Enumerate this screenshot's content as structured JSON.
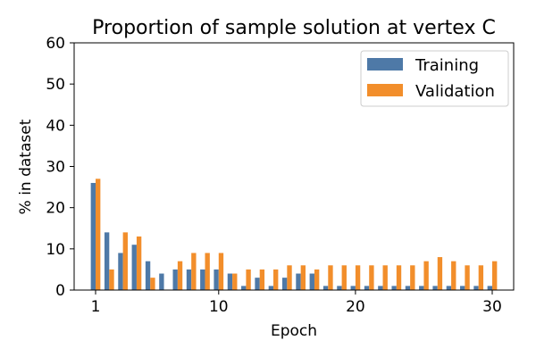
{
  "chart_data": {
    "type": "bar",
    "title": "Proportion of sample solution at vertex C",
    "xlabel": "Epoch",
    "ylabel": "% in dataset",
    "x": [
      1,
      2,
      3,
      4,
      5,
      6,
      7,
      8,
      9,
      10,
      11,
      12,
      13,
      14,
      15,
      16,
      17,
      18,
      19,
      20,
      21,
      22,
      23,
      24,
      25,
      26,
      27,
      28,
      29,
      30
    ],
    "xticks": [
      1,
      10,
      20,
      30
    ],
    "ylim": [
      0,
      60
    ],
    "yticks": [
      0,
      10,
      20,
      30,
      40,
      50,
      60
    ],
    "legend_position": "top-right",
    "grid": false,
    "series": [
      {
        "name": "Training",
        "color": "#4e79a7",
        "values": [
          26,
          14,
          9,
          11,
          7,
          4,
          5,
          5,
          5,
          5,
          4,
          1,
          3,
          1,
          3,
          4,
          4,
          1,
          1,
          1,
          1,
          1,
          1,
          1,
          1,
          1,
          1,
          1,
          1,
          1
        ]
      },
      {
        "name": "Validation",
        "color": "#f28e2b",
        "values": [
          27,
          5,
          14,
          13,
          3,
          0,
          7,
          9,
          9,
          9,
          4,
          5,
          5,
          5,
          6,
          6,
          5,
          6,
          6,
          6,
          6,
          6,
          6,
          6,
          7,
          8,
          7,
          6,
          6,
          7
        ]
      }
    ]
  }
}
